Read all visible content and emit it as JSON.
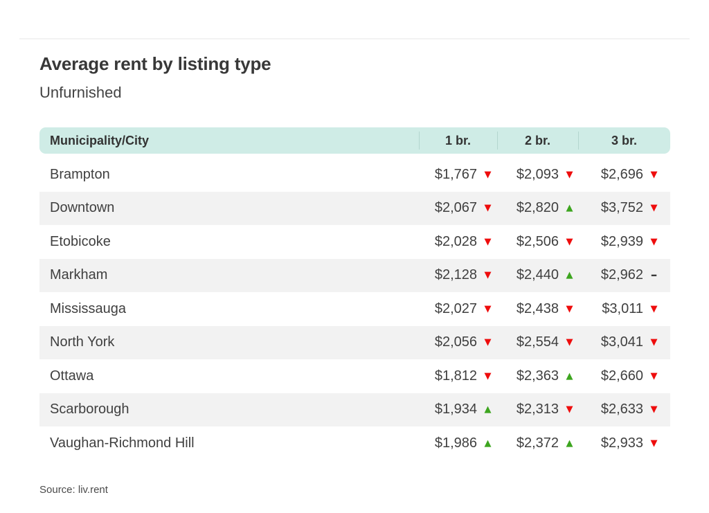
{
  "title": "Average rent by listing type",
  "subtitle": "Unfurnished",
  "source": "Source: liv.rent",
  "icons": {
    "up": "▲",
    "down": "▼",
    "flat": "–"
  },
  "colors": {
    "up": "#3da51f",
    "down": "#ee0d0d",
    "flat": "#3a3a3a",
    "header_bg": "#cfece6",
    "row_stripe": "#f2f2f2"
  },
  "chart_data": {
    "type": "table",
    "columns": [
      "Municipality/City",
      "1 br.",
      "2 br.",
      "3 br."
    ],
    "rows": [
      {
        "city": "Brampton",
        "values": [
          {
            "amount": "$1,767",
            "trend": "down"
          },
          {
            "amount": "$2,093",
            "trend": "down"
          },
          {
            "amount": "$2,696",
            "trend": "down"
          }
        ]
      },
      {
        "city": "Downtown",
        "values": [
          {
            "amount": "$2,067",
            "trend": "down"
          },
          {
            "amount": "$2,820",
            "trend": "up"
          },
          {
            "amount": "$3,752",
            "trend": "down"
          }
        ]
      },
      {
        "city": "Etobicoke",
        "values": [
          {
            "amount": "$2,028",
            "trend": "down"
          },
          {
            "amount": "$2,506",
            "trend": "down"
          },
          {
            "amount": "$2,939",
            "trend": "down"
          }
        ]
      },
      {
        "city": "Markham",
        "values": [
          {
            "amount": "$2,128",
            "trend": "down"
          },
          {
            "amount": "$2,440",
            "trend": "up"
          },
          {
            "amount": "$2,962",
            "trend": "flat"
          }
        ]
      },
      {
        "city": "Mississauga",
        "values": [
          {
            "amount": "$2,027",
            "trend": "down"
          },
          {
            "amount": "$2,438",
            "trend": "down"
          },
          {
            "amount": "$3,011",
            "trend": "down"
          }
        ]
      },
      {
        "city": "North York",
        "values": [
          {
            "amount": "$2,056",
            "trend": "down"
          },
          {
            "amount": "$2,554",
            "trend": "down"
          },
          {
            "amount": "$3,041",
            "trend": "down"
          }
        ]
      },
      {
        "city": "Ottawa",
        "values": [
          {
            "amount": "$1,812",
            "trend": "down"
          },
          {
            "amount": "$2,363",
            "trend": "up"
          },
          {
            "amount": "$2,660",
            "trend": "down"
          }
        ]
      },
      {
        "city": "Scarborough",
        "values": [
          {
            "amount": "$1,934",
            "trend": "up"
          },
          {
            "amount": "$2,313",
            "trend": "down"
          },
          {
            "amount": "$2,633",
            "trend": "down"
          }
        ]
      },
      {
        "city": "Vaughan-Richmond Hill",
        "values": [
          {
            "amount": "$1,986",
            "trend": "up"
          },
          {
            "amount": "$2,372",
            "trend": "up"
          },
          {
            "amount": "$2,933",
            "trend": "down"
          }
        ]
      }
    ]
  }
}
